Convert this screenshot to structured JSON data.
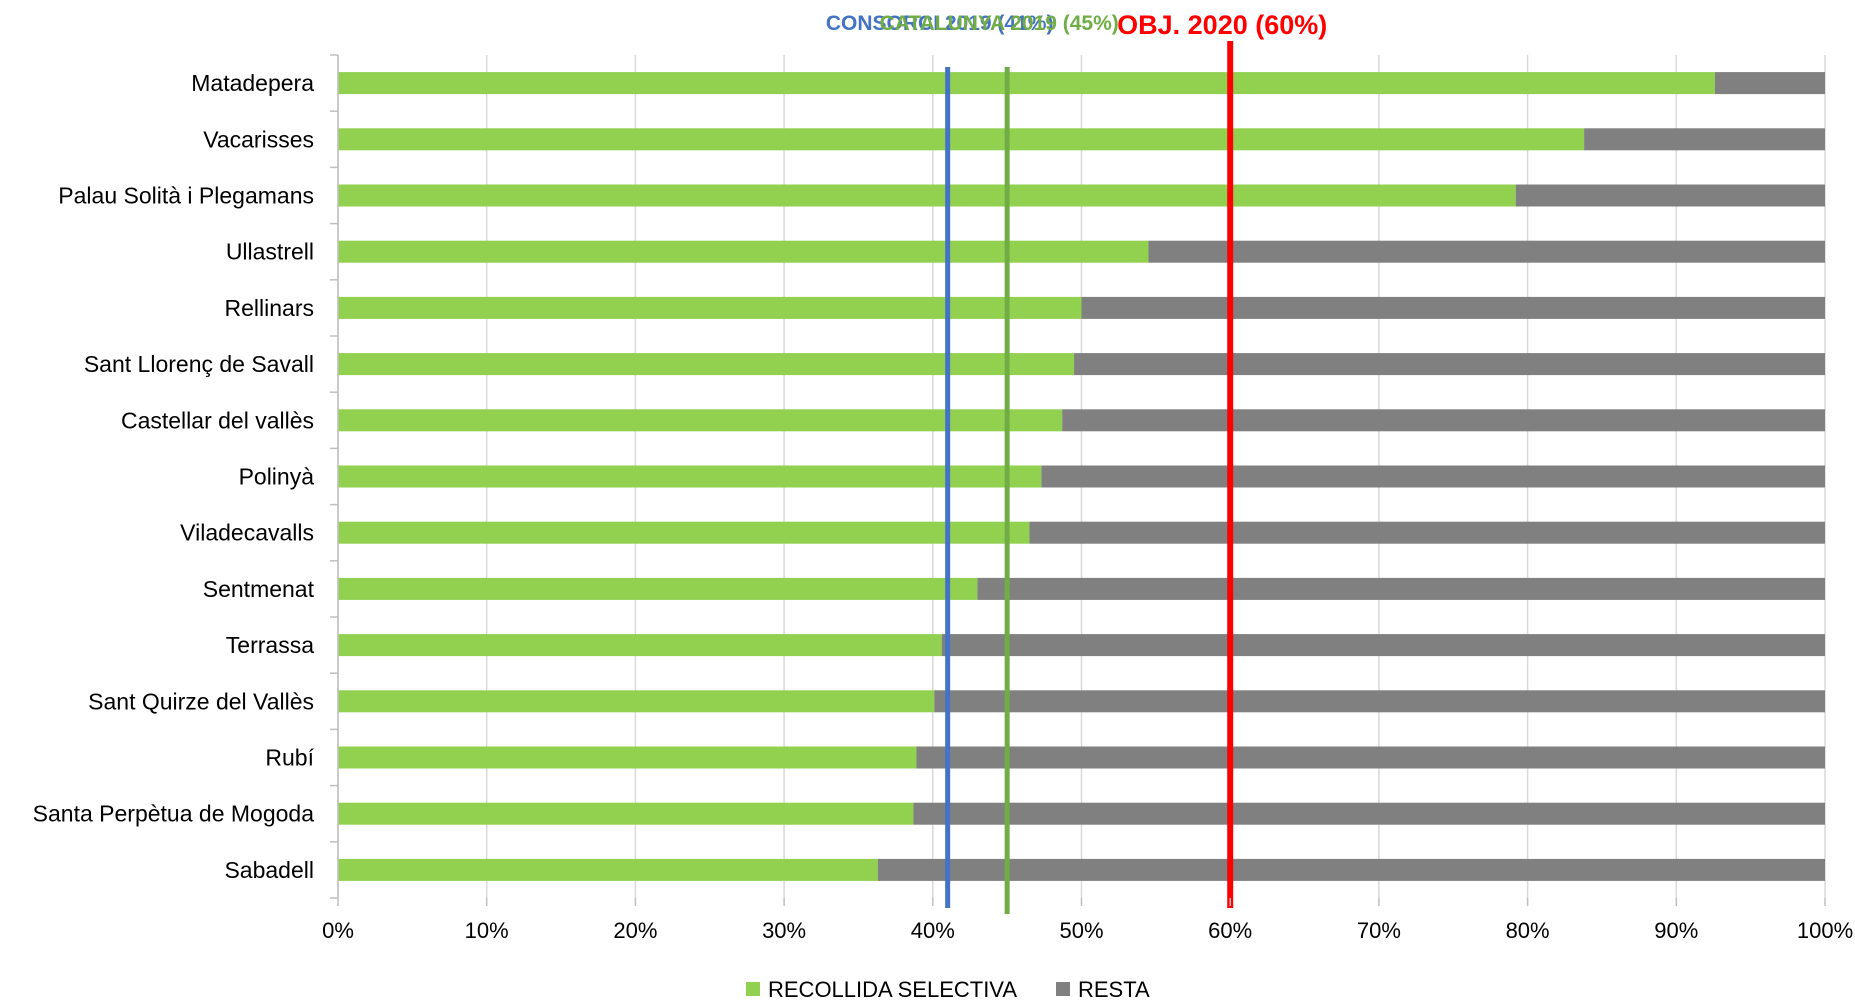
{
  "chart_data": {
    "type": "bar",
    "orientation": "horizontal",
    "stacked": true,
    "percent_stacked": true,
    "categories": [
      "Matadepera",
      "Vacarisses",
      "Palau Solità i Plegamans",
      "Ullastrell",
      "Rellinars",
      "Sant Llorenç de Savall",
      "Castellar del vallès",
      "Polinyà",
      "Viladecavalls",
      "Sentmenat",
      "Terrassa",
      "Sant Quirze del Vallès",
      "Rubí",
      "Santa Perpètua de Mogoda",
      "Sabadell"
    ],
    "series": [
      {
        "name": "RECOLLIDA SELECTIVA",
        "color": "#92d050",
        "values": [
          92.6,
          83.8,
          79.2,
          54.5,
          50.0,
          49.5,
          48.7,
          47.3,
          46.5,
          43.0,
          40.6,
          40.1,
          38.9,
          38.7,
          36.3
        ]
      },
      {
        "name": "RESTA",
        "color": "#808080",
        "values": [
          7.4,
          16.2,
          20.8,
          45.5,
          50.0,
          50.5,
          51.3,
          52.7,
          53.5,
          57.0,
          59.4,
          59.9,
          61.1,
          61.3,
          63.7
        ]
      }
    ],
    "xlim": [
      0,
      100
    ],
    "x_ticks": [
      "0%",
      "10%",
      "20%",
      "30%",
      "40%",
      "50%",
      "60%",
      "70%",
      "80%",
      "90%",
      "100%"
    ],
    "grid": "vertical",
    "legend": "bottom",
    "reference_lines": [
      {
        "label": "CONSORCI 2019 (41%)",
        "value": 41,
        "color": "#4472c4"
      },
      {
        "label": "CATALUNYA 2019 (45%)",
        "value": 45,
        "color": "#70ad47"
      },
      {
        "label": "OBJ. 2020 (60%)",
        "value": 60,
        "color": "#ff0000"
      }
    ]
  }
}
